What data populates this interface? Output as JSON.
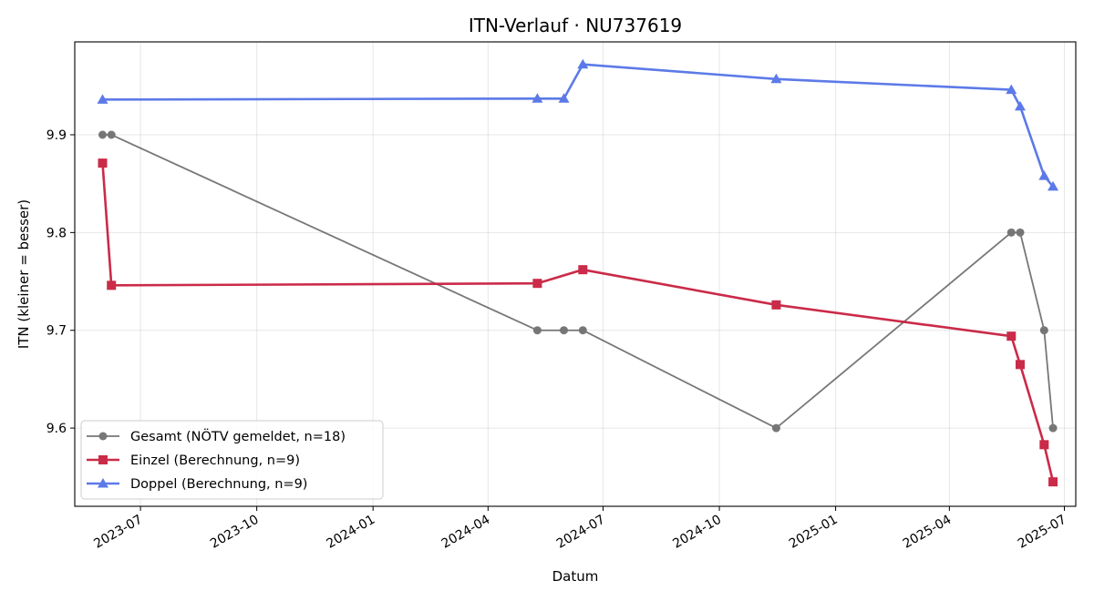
{
  "chart_data": {
    "type": "line",
    "title": "ITN-Verlauf · NU737619",
    "xlabel": "Datum",
    "ylabel": "ITN  (kleiner = besser)",
    "xlim": [
      "2023-05-10",
      "2025-07-10"
    ],
    "ylim": [
      9.52,
      9.995
    ],
    "x_ticks": [
      "2023-07",
      "2023-10",
      "2024-01",
      "2024-04",
      "2024-07",
      "2024-10",
      "2025-01",
      "2025-04",
      "2025-07"
    ],
    "y_ticks": [
      9.6,
      9.7,
      9.8,
      9.9
    ],
    "grid": true,
    "legend": "lower-left",
    "series": [
      {
        "name": "Gesamt (NÖTV gemeldet, n=18)",
        "color": "#444444",
        "marker": "circle",
        "points": [
          [
            "2023-06-01",
            9.9
          ],
          [
            "2023-06-08",
            9.9
          ],
          [
            "2024-05-10",
            9.7
          ],
          [
            "2024-05-31",
            9.7
          ],
          [
            "2024-06-15",
            9.7
          ],
          [
            "2024-11-15",
            9.6
          ],
          [
            "2025-05-20",
            9.8
          ],
          [
            "2025-05-27",
            9.8
          ],
          [
            "2025-06-15",
            9.7
          ],
          [
            "2025-06-22",
            9.6
          ]
        ]
      },
      {
        "name": "Einzel (Berechnung, n=9)",
        "color": "#c8203f",
        "marker": "square",
        "points": [
          [
            "2023-06-01",
            9.871
          ],
          [
            "2023-06-08",
            9.746
          ],
          [
            "2024-05-10",
            9.748
          ],
          [
            "2024-06-15",
            9.762
          ],
          [
            "2024-11-15",
            9.726
          ],
          [
            "2025-05-20",
            9.694
          ],
          [
            "2025-05-27",
            9.665
          ],
          [
            "2025-06-15",
            9.583
          ],
          [
            "2025-06-22",
            9.545
          ]
        ]
      },
      {
        "name": "Doppel (Berechnung, n=9)",
        "color": "#4f6fe6",
        "marker": "triangle",
        "points": [
          [
            "2023-06-01",
            9.936
          ],
          [
            "2024-05-10",
            9.937
          ],
          [
            "2024-05-31",
            9.937
          ],
          [
            "2024-06-15",
            9.972
          ],
          [
            "2024-11-15",
            9.957
          ],
          [
            "2025-05-20",
            9.946
          ],
          [
            "2025-05-27",
            9.929
          ],
          [
            "2025-06-15",
            9.858
          ],
          [
            "2025-06-22",
            9.847
          ]
        ]
      }
    ]
  }
}
